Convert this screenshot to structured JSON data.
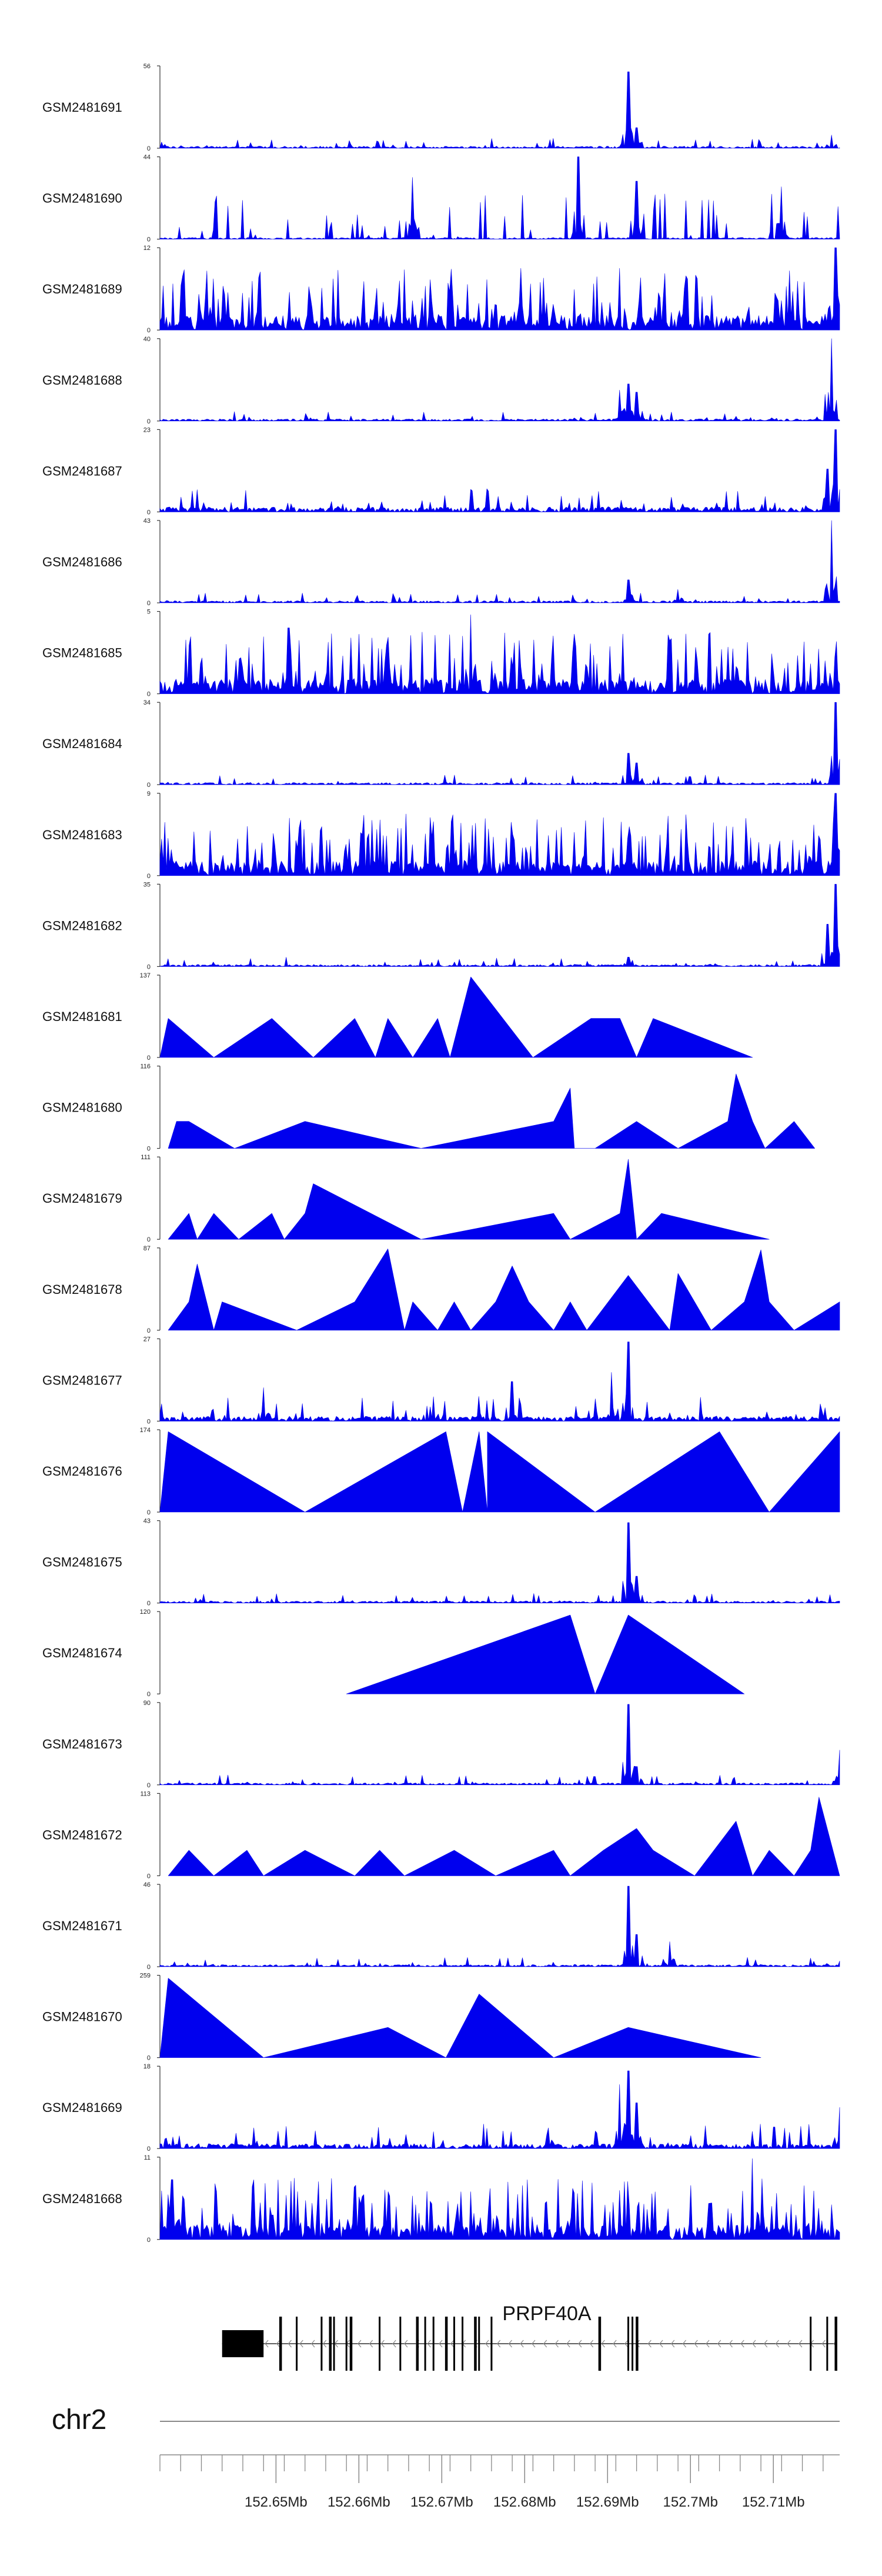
{
  "chart_data": {
    "type": "area",
    "title": "",
    "colors": {
      "signal": "#0000ee",
      "axis": "#333333",
      "gene": "#000000",
      "ideogram": "#888888"
    },
    "x_range": [
      152.636,
      152.718
    ],
    "x_unit": "Mb",
    "tracks": [
      {
        "name": "GSM2481691",
        "ymax": 56,
        "ymin_label": "0",
        "ymax_label": "56",
        "style": "spiky",
        "peaks": [
          [
            152.6925,
            52
          ],
          [
            152.6935,
            14
          ],
          [
            152.717,
            9
          ]
        ]
      },
      {
        "name": "GSM2481690",
        "ymax": 44,
        "ymin_label": "0",
        "ymax_label": "44",
        "style": "triangles",
        "peaks": [
          [
            152.6865,
            44
          ],
          [
            152.6665,
            33
          ],
          [
            152.6935,
            31
          ],
          [
            152.711,
            28
          ]
        ]
      },
      {
        "name": "GSM2481689",
        "ymax": 12,
        "ymin_label": "0",
        "ymax_label": "12",
        "style": "spiky",
        "peaks": [
          [
            152.7175,
            12
          ],
          [
            152.6915,
            9
          ],
          [
            152.6795,
            9
          ]
        ]
      },
      {
        "name": "GSM2481688",
        "ymax": 40,
        "ymin_label": "0",
        "ymax_label": "40",
        "style": "spiky",
        "peaks": [
          [
            152.717,
            40
          ],
          [
            152.6925,
            18
          ],
          [
            152.6915,
            15
          ],
          [
            152.6935,
            14
          ]
        ]
      },
      {
        "name": "GSM2481687",
        "ymax": 23,
        "ymin_label": "0",
        "ymax_label": "23",
        "style": "spiky",
        "peaks": [
          [
            152.7175,
            23
          ],
          [
            152.7165,
            12
          ]
        ]
      },
      {
        "name": "GSM2481686",
        "ymax": 43,
        "ymin_label": "0",
        "ymax_label": "43",
        "style": "spiky",
        "peaks": [
          [
            152.717,
            43
          ],
          [
            152.6925,
            12
          ],
          [
            152.6985,
            7
          ]
        ]
      },
      {
        "name": "GSM2481685",
        "ymax": 5,
        "ymin_label": "0",
        "ymax_label": "5",
        "style": "spiky",
        "peaks": [
          [
            152.6735,
            4.8
          ],
          [
            152.6515,
            4
          ],
          [
            152.6725,
            3.5
          ]
        ]
      },
      {
        "name": "GSM2481684",
        "ymax": 34,
        "ymin_label": "0",
        "ymax_label": "34",
        "style": "spiky",
        "peaks": [
          [
            152.7175,
            34
          ],
          [
            152.6925,
            13
          ],
          [
            152.6935,
            9
          ]
        ]
      },
      {
        "name": "GSM2481683",
        "ymax": 9,
        "ymin_label": "0",
        "ymax_label": "9",
        "style": "spiky",
        "peaks": [
          [
            152.7175,
            9
          ],
          [
            152.6925,
            4
          ],
          [
            152.6705,
            3
          ]
        ]
      },
      {
        "name": "GSM2481682",
        "ymax": 35,
        "ymin_label": "0",
        "ymax_label": "35",
        "style": "spiky",
        "peaks": [
          [
            152.7175,
            35
          ],
          [
            152.7165,
            18
          ],
          [
            152.6925,
            4
          ]
        ]
      },
      {
        "name": "GSM2481681",
        "ymax": 137,
        "ymin_label": "0",
        "ymax_label": "137",
        "style": "sparse",
        "points": [
          [
            152.636,
            0
          ],
          [
            152.637,
            65
          ],
          [
            152.6425,
            0
          ],
          [
            152.6495,
            65
          ],
          [
            152.6545,
            0
          ],
          [
            152.6595,
            65
          ],
          [
            152.662,
            0
          ],
          [
            152.6635,
            65
          ],
          [
            152.6665,
            0
          ],
          [
            152.6695,
            65
          ],
          [
            152.671,
            0
          ],
          [
            152.6735,
            134
          ],
          [
            152.681,
            0
          ],
          [
            152.688,
            65
          ],
          [
            152.6915,
            65
          ],
          [
            152.6935,
            0
          ],
          [
            152.6955,
            65
          ],
          [
            152.7075,
            0
          ]
        ]
      },
      {
        "name": "GSM2481680",
        "ymax": 116,
        "ymin_label": "0",
        "ymax_label": "116",
        "style": "sparse",
        "points": [
          [
            152.637,
            0
          ],
          [
            152.638,
            38
          ],
          [
            152.6395,
            38
          ],
          [
            152.645,
            0
          ],
          [
            152.6535,
            38
          ],
          [
            152.6675,
            0
          ],
          [
            152.6835,
            38
          ],
          [
            152.6855,
            85
          ],
          [
            152.686,
            0
          ],
          [
            152.6885,
            0
          ],
          [
            152.6935,
            38
          ],
          [
            152.6985,
            0
          ],
          [
            152.7045,
            38
          ],
          [
            152.7055,
            105
          ],
          [
            152.7075,
            38
          ],
          [
            152.709,
            0
          ],
          [
            152.7125,
            38
          ],
          [
            152.715,
            0
          ]
        ]
      },
      {
        "name": "GSM2481679",
        "ymax": 111,
        "ymin_label": "0",
        "ymax_label": "111",
        "style": "sparse",
        "points": [
          [
            152.637,
            0
          ],
          [
            152.6395,
            35
          ],
          [
            152.6405,
            0
          ],
          [
            152.6425,
            35
          ],
          [
            152.6455,
            0
          ],
          [
            152.6495,
            35
          ],
          [
            152.651,
            0
          ],
          [
            152.6535,
            35
          ],
          [
            152.6545,
            75
          ],
          [
            152.6675,
            0
          ],
          [
            152.6835,
            35
          ],
          [
            152.6855,
            0
          ],
          [
            152.6915,
            35
          ],
          [
            152.6925,
            108
          ],
          [
            152.6935,
            0
          ],
          [
            152.6965,
            35
          ],
          [
            152.7095,
            0
          ]
        ]
      },
      {
        "name": "GSM2481678",
        "ymax": 87,
        "ymin_label": "0",
        "ymax_label": "87",
        "style": "sparse",
        "points": [
          [
            152.637,
            0
          ],
          [
            152.6395,
            30
          ],
          [
            152.6405,
            70
          ],
          [
            152.6425,
            0
          ],
          [
            152.6435,
            30
          ],
          [
            152.6525,
            0
          ],
          [
            152.6595,
            30
          ],
          [
            152.6635,
            86
          ],
          [
            152.6655,
            0
          ],
          [
            152.6665,
            30
          ],
          [
            152.6695,
            0
          ],
          [
            152.6715,
            30
          ],
          [
            152.6735,
            0
          ],
          [
            152.6765,
            30
          ],
          [
            152.6785,
            68
          ],
          [
            152.6805,
            30
          ],
          [
            152.6835,
            0
          ],
          [
            152.6855,
            30
          ],
          [
            152.6875,
            0
          ],
          [
            152.6925,
            58
          ],
          [
            152.6975,
            0
          ],
          [
            152.6985,
            60
          ],
          [
            152.7025,
            0
          ],
          [
            152.7065,
            30
          ],
          [
            152.7085,
            85
          ],
          [
            152.7095,
            30
          ],
          [
            152.7125,
            0
          ],
          [
            152.718,
            30
          ]
        ]
      },
      {
        "name": "GSM2481677",
        "ymax": 27,
        "ymin_label": "0",
        "ymax_label": "27",
        "style": "spiky",
        "peaks": [
          [
            152.6925,
            26
          ],
          [
            152.6905,
            16
          ],
          [
            152.6785,
            13
          ],
          [
            152.6485,
            11
          ]
        ]
      },
      {
        "name": "GSM2481676",
        "ymax": 174,
        "ymin_label": "0",
        "ymax_label": "174",
        "style": "sparse",
        "points": [
          [
            152.636,
            0
          ],
          [
            152.637,
            170
          ],
          [
            152.6535,
            0
          ],
          [
            152.6705,
            170
          ],
          [
            152.6725,
            0
          ],
          [
            152.6745,
            170
          ],
          [
            152.6755,
            0
          ],
          [
            152.6755,
            170
          ],
          [
            152.6885,
            0
          ],
          [
            152.7035,
            170
          ],
          [
            152.7095,
            0
          ],
          [
            152.718,
            170
          ]
        ]
      },
      {
        "name": "GSM2481675",
        "ymax": 43,
        "ymin_label": "0",
        "ymax_label": "43",
        "style": "spiky",
        "peaks": [
          [
            152.6925,
            42
          ],
          [
            152.6935,
            14
          ]
        ]
      },
      {
        "name": "GSM2481674",
        "ymax": 120,
        "ymin_label": "0",
        "ymax_label": "120",
        "style": "sparse",
        "points": [
          [
            152.6585,
            0
          ],
          [
            152.6855,
            115
          ],
          [
            152.6885,
            0
          ],
          [
            152.6925,
            115
          ],
          [
            152.7065,
            0
          ]
        ]
      },
      {
        "name": "GSM2481673",
        "ymax": 90,
        "ymin_label": "0",
        "ymax_label": "90",
        "style": "spiky",
        "peaks": [
          [
            152.6925,
            88
          ],
          [
            152.718,
            38
          ],
          [
            152.6935,
            20
          ]
        ]
      },
      {
        "name": "GSM2481672",
        "ymax": 113,
        "ymin_label": "0",
        "ymax_label": "113",
        "style": "sparse",
        "points": [
          [
            152.637,
            0
          ],
          [
            152.6395,
            35
          ],
          [
            152.6425,
            0
          ],
          [
            152.6465,
            35
          ],
          [
            152.6485,
            0
          ],
          [
            152.6535,
            35
          ],
          [
            152.6595,
            0
          ],
          [
            152.6625,
            35
          ],
          [
            152.6655,
            0
          ],
          [
            152.6715,
            35
          ],
          [
            152.6765,
            0
          ],
          [
            152.6835,
            35
          ],
          [
            152.6855,
            0
          ],
          [
            152.6895,
            35
          ],
          [
            152.6935,
            65
          ],
          [
            152.6955,
            35
          ],
          [
            152.7005,
            0
          ],
          [
            152.7055,
            75
          ],
          [
            152.7075,
            0
          ],
          [
            152.7095,
            35
          ],
          [
            152.7125,
            0
          ],
          [
            152.7145,
            35
          ],
          [
            152.7155,
            108
          ],
          [
            152.718,
            0
          ]
        ]
      },
      {
        "name": "GSM2481671",
        "ymax": 46,
        "ymin_label": "0",
        "ymax_label": "46",
        "style": "spiky",
        "peaks": [
          [
            152.6925,
            45
          ],
          [
            152.6935,
            18
          ],
          [
            152.6975,
            14
          ]
        ]
      },
      {
        "name": "GSM2481670",
        "ymax": 259,
        "ymin_label": "0",
        "ymax_label": "259",
        "style": "sparse",
        "points": [
          [
            152.636,
            0
          ],
          [
            152.637,
            250
          ],
          [
            152.6485,
            0
          ],
          [
            152.6635,
            95
          ],
          [
            152.6705,
            0
          ],
          [
            152.6745,
            200
          ],
          [
            152.6835,
            0
          ],
          [
            152.6925,
            95
          ],
          [
            152.7085,
            0
          ]
        ]
      },
      {
        "name": "GSM2481669",
        "ymax": 18,
        "ymin_label": "0",
        "ymax_label": "18",
        "style": "spiky",
        "peaks": [
          [
            152.6925,
            17
          ],
          [
            152.6915,
            14
          ],
          [
            152.6935,
            10
          ],
          [
            152.718,
            9
          ]
        ]
      },
      {
        "name": "GSM2481668",
        "ymax": 11,
        "ymin_label": "0",
        "ymax_label": "11",
        "style": "spiky",
        "peaks": [
          [
            152.7075,
            10.8
          ],
          [
            152.6375,
            8
          ],
          [
            152.6595,
            7
          ]
        ]
      }
    ],
    "gene": {
      "name": "PRPF40A",
      "strand": "-",
      "utr_block": [
        152.6435,
        152.6485
      ],
      "exons": [
        152.6505,
        152.6525,
        152.6555,
        152.6565,
        152.657,
        152.6585,
        152.659,
        152.6625,
        152.665,
        152.667,
        152.668,
        152.669,
        152.6705,
        152.6715,
        152.6725,
        152.674,
        152.6745,
        152.676,
        152.689,
        152.6925,
        152.693,
        152.6935,
        152.7145,
        152.7165,
        152.7175
      ]
    },
    "chromosome": "chr2",
    "x_ticks": [
      {
        "value": 152.65,
        "label": "152.65Mb"
      },
      {
        "value": 152.66,
        "label": "152.66Mb"
      },
      {
        "value": 152.67,
        "label": "152.67Mb"
      },
      {
        "value": 152.68,
        "label": "152.68Mb"
      },
      {
        "value": 152.69,
        "label": "152.69Mb"
      },
      {
        "value": 152.7,
        "label": "152.7Mb"
      },
      {
        "value": 152.71,
        "label": "152.71Mb"
      }
    ]
  }
}
